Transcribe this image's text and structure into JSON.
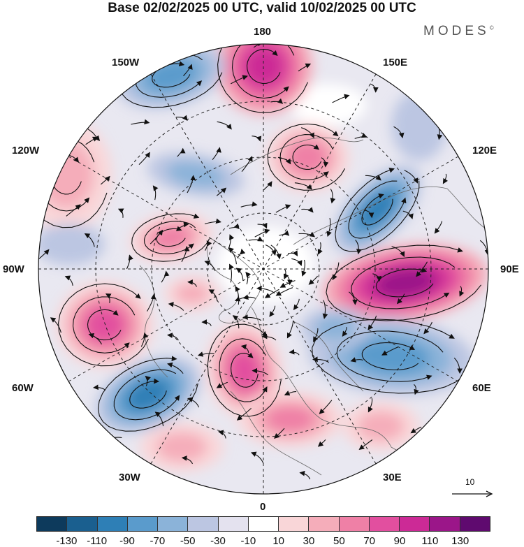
{
  "header": {
    "title": "Base 02/02/2025 00 UTC, valid 10/02/2025 00 UTC",
    "brand": "MODES",
    "brand_mark": "©"
  },
  "map": {
    "projection": "north-polar-stereographic",
    "longitude_labels": {
      "lon_180": "180",
      "lon_150w": "150W",
      "lon_150e": "150E",
      "lon_120w": "120W",
      "lon_120e": "120E",
      "lon_90w": "90W",
      "lon_90e": "90E",
      "lon_60w": "60W",
      "lon_60e": "60E",
      "lon_30w": "30W",
      "lon_30e": "30E",
      "lon_0": "0"
    },
    "vector_scale": "10"
  },
  "legend": {
    "colors": [
      "#0d3a5c",
      "#1a5f8f",
      "#2e7fb6",
      "#5a9bcc",
      "#8bb3d9",
      "#bcc6e2",
      "#e4e2ef",
      "#ffffff",
      "#f9d6d8",
      "#f5adba",
      "#ef80a6",
      "#e24f9f",
      "#cc2a96",
      "#9b1689",
      "#5f0a6f"
    ],
    "ticks": [
      "-130",
      "-110",
      "-90",
      "-70",
      "-50",
      "-30",
      "-10",
      "10",
      "30",
      "50",
      "70",
      "90",
      "110",
      "130"
    ]
  }
}
